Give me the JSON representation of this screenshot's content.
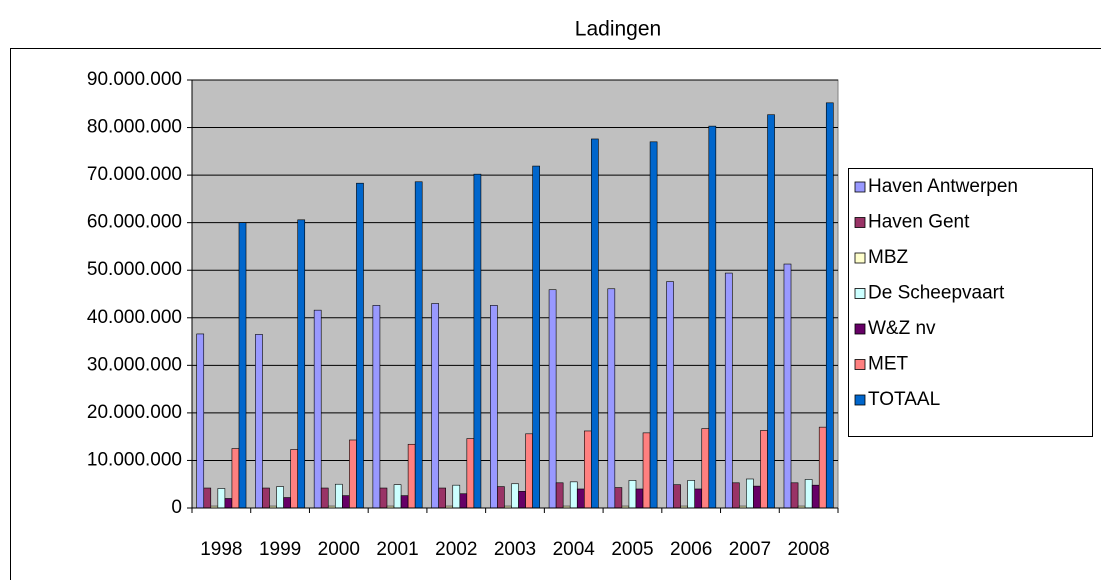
{
  "chart_data": {
    "type": "bar",
    "title": "Ladingen",
    "categories": [
      "1998",
      "1999",
      "2000",
      "2001",
      "2002",
      "2003",
      "2004",
      "2005",
      "2006",
      "2007",
      "2008"
    ],
    "series": [
      {
        "name": "Haven Antwerpen",
        "color": "#9999ff",
        "values": [
          36600000,
          36500000,
          41600000,
          42600000,
          43000000,
          42600000,
          45900000,
          46100000,
          47600000,
          49400000,
          51300000
        ]
      },
      {
        "name": "Haven Gent",
        "color": "#993366",
        "values": [
          4200000,
          4200000,
          4200000,
          4200000,
          4200000,
          4500000,
          5300000,
          4300000,
          4900000,
          5300000,
          5300000
        ]
      },
      {
        "name": "MBZ",
        "color": "#ffffcc",
        "values": [
          400000,
          400000,
          400000,
          400000,
          400000,
          400000,
          400000,
          400000,
          400000,
          400000,
          400000
        ]
      },
      {
        "name": "De Scheepvaart",
        "color": "#ccffff",
        "values": [
          4100000,
          4500000,
          5000000,
          4900000,
          4800000,
          5100000,
          5500000,
          5800000,
          5800000,
          6100000,
          6000000
        ]
      },
      {
        "name": "W&Z nv",
        "color": "#660066",
        "values": [
          2000000,
          2200000,
          2600000,
          2600000,
          3000000,
          3500000,
          4000000,
          4000000,
          4000000,
          4600000,
          4800000
        ]
      },
      {
        "name": "MET",
        "color": "#ff8080",
        "values": [
          12500000,
          12300000,
          14300000,
          13400000,
          14600000,
          15600000,
          16200000,
          15800000,
          16700000,
          16300000,
          17000000
        ]
      },
      {
        "name": "TOTAAL",
        "color": "#0066cc",
        "values": [
          60000000,
          60600000,
          68300000,
          68600000,
          70200000,
          71900000,
          77600000,
          77000000,
          80300000,
          82700000,
          85200000
        ]
      }
    ],
    "ylim": [
      0,
      90000000
    ],
    "yticks": [
      0,
      {
        "value": 10000000,
        "label": "10.000.000"
      },
      {
        "value": 20000000,
        "label": "20.000.000"
      },
      {
        "value": 30000000,
        "label": "30.000.000"
      },
      {
        "value": 40000000,
        "label": "40.000.000"
      },
      {
        "value": 50000000,
        "label": "50.000.000"
      },
      {
        "value": 60000000,
        "label": "60.000.000"
      },
      {
        "value": 70000000,
        "label": "70.000.000"
      },
      {
        "value": 80000000,
        "label": "80.000.000"
      },
      {
        "value": 90000000,
        "label": "90.000.000"
      }
    ],
    "grid": true,
    "legend": "right"
  }
}
